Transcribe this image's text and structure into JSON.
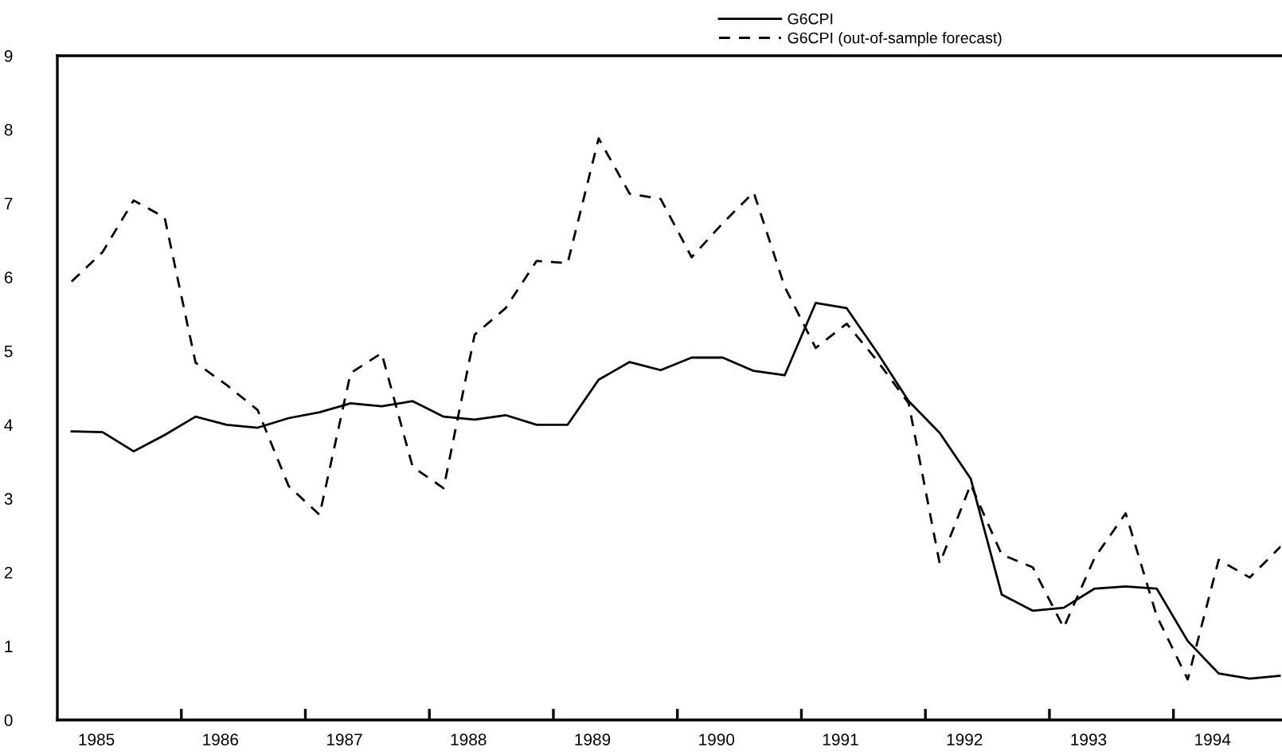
{
  "chart_data": {
    "type": "line",
    "x": [
      1985.0,
      1985.25,
      1985.5,
      1985.75,
      1986.0,
      1986.25,
      1986.5,
      1986.75,
      1987.0,
      1987.25,
      1987.5,
      1987.75,
      1988.0,
      1988.25,
      1988.5,
      1988.75,
      1989.0,
      1989.25,
      1989.5,
      1989.75,
      1990.0,
      1990.25,
      1990.5,
      1990.75,
      1991.0,
      1991.25,
      1991.5,
      1991.75,
      1992.0,
      1992.25,
      1992.5,
      1992.75,
      1993.0,
      1993.25,
      1993.5,
      1993.75,
      1994.0,
      1994.25,
      1994.5,
      1994.75
    ],
    "series": [
      {
        "name": "G6CPI",
        "color": "#000000",
        "line_style": "solid",
        "values": [
          3.91,
          3.9,
          3.64,
          3.86,
          4.11,
          4.0,
          3.96,
          4.09,
          4.17,
          4.29,
          4.25,
          4.32,
          4.11,
          4.07,
          4.13,
          4.0,
          4.0,
          4.61,
          4.85,
          4.74,
          4.91,
          4.91,
          4.73,
          4.67,
          5.65,
          5.58,
          4.97,
          4.32,
          3.89,
          3.27,
          1.7,
          1.48,
          1.52,
          1.78,
          1.81,
          1.78,
          1.07,
          0.63,
          0.56,
          0.6
        ]
      },
      {
        "name": "G6CPI (out-of-sample forecast)",
        "color": "#000000",
        "line_style": "dashed",
        "values": [
          5.94,
          6.34,
          7.04,
          6.81,
          4.84,
          4.54,
          4.2,
          3.17,
          2.78,
          4.7,
          4.97,
          3.43,
          3.14,
          5.22,
          5.58,
          6.22,
          6.19,
          7.88,
          7.13,
          7.06,
          6.27,
          6.73,
          7.15,
          5.87,
          5.04,
          5.37,
          4.86,
          4.29,
          2.12,
          3.19,
          2.24,
          2.07,
          1.25,
          2.2,
          2.8,
          1.41,
          0.55,
          2.17,
          1.93,
          2.35
        ]
      }
    ],
    "xlim": [
      1984.885,
      1994.75
    ],
    "xticks": [
      {
        "value": 1985.2,
        "label": "1985"
      },
      {
        "value": 1986.2,
        "label": "1986"
      },
      {
        "value": 1987.2,
        "label": "1987"
      },
      {
        "value": 1988.2,
        "label": "1988"
      },
      {
        "value": 1989.2,
        "label": "1989"
      },
      {
        "value": 1990.2,
        "label": "1990"
      },
      {
        "value": 1991.2,
        "label": "1991"
      },
      {
        "value": 1992.2,
        "label": "1992"
      },
      {
        "value": 1993.2,
        "label": "1993"
      },
      {
        "value": 1994.2,
        "label": "1994"
      },
      {
        "value": 1985.885,
        "label": null
      },
      {
        "value": 1986.885,
        "label": null
      },
      {
        "value": 1987.885,
        "label": null
      },
      {
        "value": 1988.885,
        "label": null
      },
      {
        "value": 1989.885,
        "label": null
      },
      {
        "value": 1990.885,
        "label": null
      },
      {
        "value": 1991.885,
        "label": null
      },
      {
        "value": 1992.885,
        "label": null
      },
      {
        "value": 1993.885,
        "label": null
      }
    ],
    "ylim": [
      0,
      9
    ],
    "yticks": [
      0,
      1,
      2,
      3,
      4,
      5,
      6,
      7,
      8,
      9
    ],
    "grid": false,
    "legend": "top",
    "marker": "none"
  }
}
